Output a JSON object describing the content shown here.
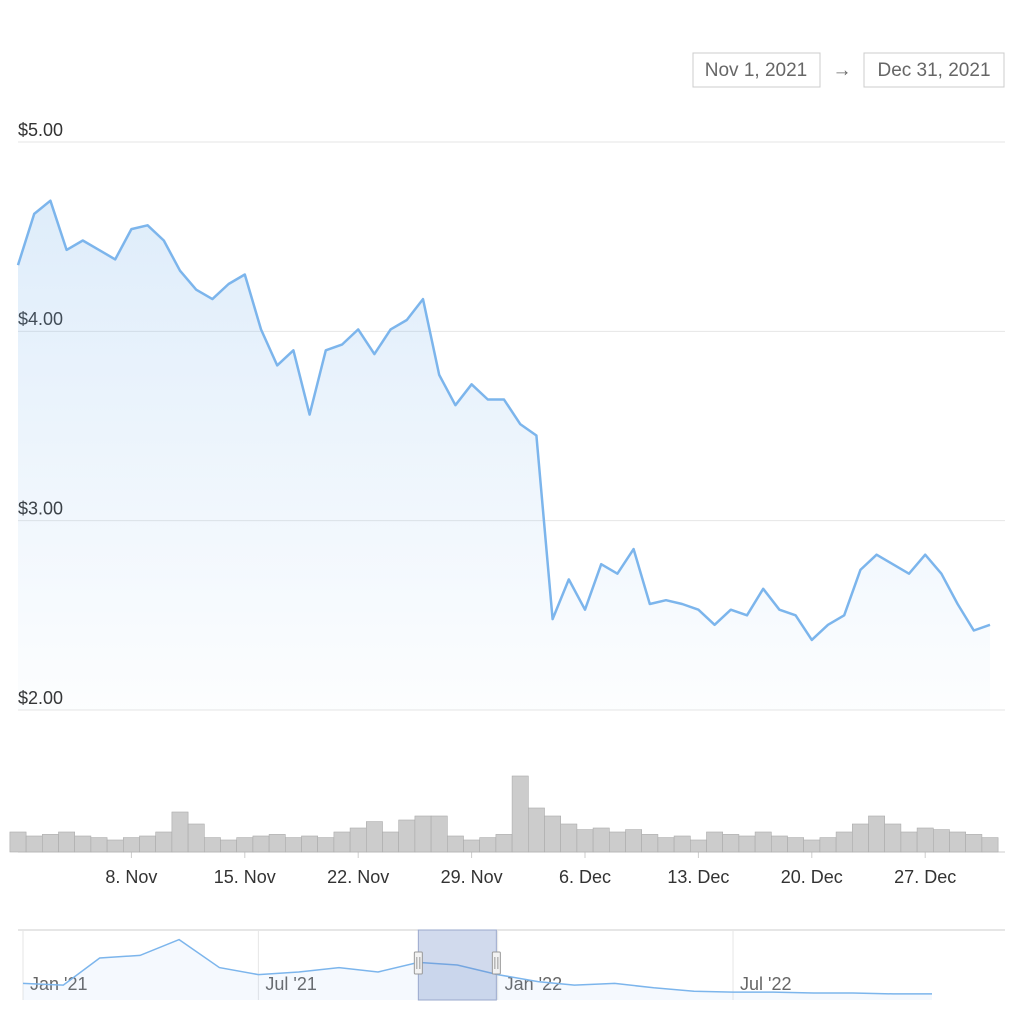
{
  "range_selector": {
    "from": "Nov 1, 2021",
    "separator": "→",
    "to": "Dec 31, 2021"
  },
  "chart_data": [
    {
      "type": "line",
      "x": [
        "2021-11-01",
        "2021-11-02",
        "2021-11-03",
        "2021-11-04",
        "2021-11-05",
        "2021-11-06",
        "2021-11-07",
        "2021-11-08",
        "2021-11-09",
        "2021-11-10",
        "2021-11-11",
        "2021-11-12",
        "2021-11-13",
        "2021-11-14",
        "2021-11-15",
        "2021-11-16",
        "2021-11-17",
        "2021-11-18",
        "2021-11-19",
        "2021-11-20",
        "2021-11-21",
        "2021-11-22",
        "2021-11-23",
        "2021-11-24",
        "2021-11-25",
        "2021-11-26",
        "2021-11-27",
        "2021-11-28",
        "2021-11-29",
        "2021-11-30",
        "2021-12-01",
        "2021-12-02",
        "2021-12-03",
        "2021-12-04",
        "2021-12-05",
        "2021-12-06",
        "2021-12-07",
        "2021-12-08",
        "2021-12-09",
        "2021-12-10",
        "2021-12-11",
        "2021-12-12",
        "2021-12-13",
        "2021-12-14",
        "2021-12-15",
        "2021-12-16",
        "2021-12-17",
        "2021-12-18",
        "2021-12-19",
        "2021-12-20",
        "2021-12-21",
        "2021-12-22",
        "2021-12-23",
        "2021-12-24",
        "2021-12-25",
        "2021-12-26",
        "2021-12-27",
        "2021-12-28",
        "2021-12-29",
        "2021-12-30",
        "2021-12-31"
      ],
      "series": [
        {
          "color": "#7cb5ec",
          "values": [
            4.35,
            4.62,
            4.69,
            4.43,
            4.48,
            4.43,
            4.38,
            4.54,
            4.56,
            4.48,
            4.32,
            4.22,
            4.17,
            4.25,
            4.3,
            4.01,
            3.82,
            3.9,
            3.56,
            3.9,
            3.93,
            4.01,
            3.88,
            4.01,
            4.06,
            4.17,
            3.77,
            3.61,
            3.72,
            3.64,
            3.64,
            3.51,
            3.45,
            2.48,
            2.69,
            2.53,
            2.77,
            2.72,
            2.85,
            2.56,
            2.58,
            2.56,
            2.53,
            2.45,
            2.53,
            2.5,
            2.64,
            2.53,
            2.5,
            2.37,
            2.45,
            2.5,
            2.74,
            2.82,
            2.77,
            2.72,
            2.82,
            2.72,
            2.56,
            2.42,
            2.45
          ]
        },
        {
          "type": "bar",
          "axis": "y2",
          "color": "#cccccc",
          "values": [
            25,
            20,
            22,
            25,
            20,
            18,
            15,
            18,
            20,
            25,
            50,
            35,
            18,
            15,
            18,
            20,
            22,
            18,
            20,
            18,
            25,
            30,
            38,
            25,
            40,
            45,
            45,
            20,
            15,
            18,
            22,
            95,
            55,
            45,
            35,
            28,
            30,
            25,
            28,
            22,
            18,
            20,
            15,
            25,
            22,
            20,
            25,
            20,
            18,
            15,
            18,
            25,
            35,
            45,
            35,
            25,
            30,
            28,
            25,
            22,
            18
          ]
        }
      ],
      "xlim": [
        "2021-11-01",
        "2021-12-31"
      ],
      "xticks": [
        {
          "value": "2021-11-08",
          "label": "8. Nov"
        },
        {
          "value": "2021-11-15",
          "label": "15. Nov"
        },
        {
          "value": "2021-11-22",
          "label": "22. Nov"
        },
        {
          "value": "2021-11-29",
          "label": "29. Nov"
        },
        {
          "value": "2021-12-06",
          "label": "6. Dec"
        },
        {
          "value": "2021-12-13",
          "label": "13. Dec"
        },
        {
          "value": "2021-12-20",
          "label": "20. Dec"
        },
        {
          "value": "2021-12-27",
          "label": "27. Dec"
        }
      ],
      "ylim": [
        2,
        5
      ],
      "yticks": [
        {
          "value": 2,
          "label": "$2.00"
        },
        {
          "value": 3,
          "label": "$3.00"
        },
        {
          "value": 4,
          "label": "$4.00"
        },
        {
          "value": 5,
          "label": "$5.00"
        }
      ],
      "y2lim": [
        0,
        100
      ],
      "grid": true
    },
    {
      "type": "area",
      "color": "#7cb5ec",
      "x": [
        "2021-01",
        "2021-02",
        "2021-03",
        "2021-04",
        "2021-05",
        "2021-06",
        "2021-07",
        "2021-08",
        "2021-09",
        "2021-10",
        "2021-11",
        "2021-12",
        "2022-01",
        "2022-02",
        "2022-03",
        "2022-04",
        "2022-05",
        "2022-06",
        "2022-07",
        "2022-08",
        "2022-09",
        "2022-10",
        "2022-11",
        "2022-12"
      ],
      "values": [
        1.9,
        1.7,
        4.8,
        5.1,
        6.9,
        3.7,
        2.9,
        3.2,
        3.7,
        3.2,
        4.3,
        4.0,
        2.9,
        2.1,
        1.7,
        1.9,
        1.4,
        1.0,
        0.9,
        0.9,
        0.8,
        0.8,
        0.7,
        0.7
      ],
      "xlim": [
        "2021-01",
        "2022-12"
      ],
      "ylim": [
        0,
        8
      ],
      "xticks": [
        {
          "value": "2021-01",
          "label": "Jan '21"
        },
        {
          "value": "2021-07",
          "label": "Jul '21"
        },
        {
          "value": "2022-01",
          "label": "Jan '22"
        },
        {
          "value": "2022-07",
          "label": "Jul '22"
        }
      ]
    }
  ]
}
